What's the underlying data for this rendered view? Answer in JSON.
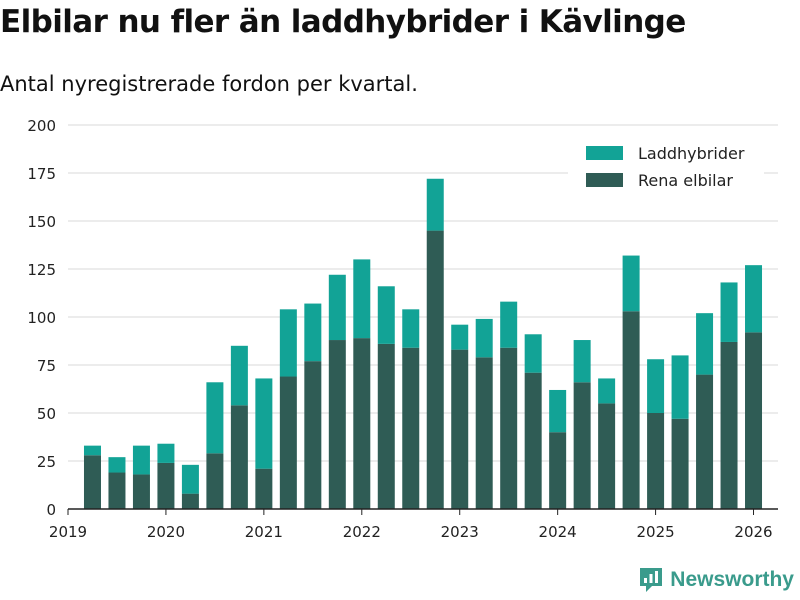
{
  "title": "Elbilar nu fler än laddhybrider i Kävlinge",
  "subtitle": "Antal nyregistrerade fordon per kvartal.",
  "brand": "Newsworthy",
  "colors": {
    "laddhybrider": "#12a396",
    "elbilar": "#2f5c55",
    "grid": "#d9d9d9",
    "axis": "#222222",
    "legend_bg": "#ffffff"
  },
  "chart_data": {
    "type": "bar",
    "stacked": true,
    "title": "Elbilar nu fler än laddhybrider i Kävlinge",
    "subtitle": "Antal nyregistrerade fordon per kvartal.",
    "xlabel": "",
    "ylabel": "",
    "ylim": [
      0,
      200
    ],
    "yticks": [
      0,
      25,
      50,
      75,
      100,
      125,
      150,
      175,
      200
    ],
    "xlim": [
      2019,
      2026.25
    ],
    "xticks": [
      2019,
      2020,
      2021,
      2022,
      2023,
      2024,
      2025,
      2026
    ],
    "xtick_labels": [
      "2019",
      "2020",
      "2021",
      "2022",
      "2023",
      "2024",
      "2025",
      "2026"
    ],
    "categories": [
      "2019 K2",
      "2019 K3",
      "2019 K4",
      "2020 K1",
      "2020 K2",
      "2020 K3",
      "2020 K4",
      "2021 K1",
      "2021 K2",
      "2021 K3",
      "2021 K4",
      "2022 K1",
      "2022 K2",
      "2022 K3",
      "2022 K4",
      "2023 K1",
      "2023 K2",
      "2023 K3",
      "2023 K4",
      "2024 K1",
      "2024 K2",
      "2024 K3",
      "2024 K4",
      "2025 K1",
      "2025 K2",
      "2025 K3",
      "2025 K4",
      "2026 K1"
    ],
    "x": [
      2019.25,
      2019.5,
      2019.75,
      2020.0,
      2020.25,
      2020.5,
      2020.75,
      2021.0,
      2021.25,
      2021.5,
      2021.75,
      2022.0,
      2022.25,
      2022.5,
      2022.75,
      2023.0,
      2023.25,
      2023.5,
      2023.75,
      2024.0,
      2024.25,
      2024.5,
      2024.75,
      2025.0,
      2025.25,
      2025.5,
      2025.75,
      2026.0
    ],
    "series": [
      {
        "name": "Rena elbilar",
        "key": "elbilar",
        "values": [
          28,
          19,
          18,
          24,
          8,
          29,
          54,
          21,
          69,
          77,
          88,
          89,
          86,
          84,
          145,
          83,
          79,
          84,
          71,
          40,
          66,
          55,
          103,
          50,
          47,
          70,
          87,
          92
        ]
      },
      {
        "name": "Laddhybrider",
        "key": "laddhybrider",
        "values": [
          5,
          8,
          15,
          10,
          15,
          37,
          31,
          47,
          35,
          30,
          34,
          41,
          30,
          20,
          27,
          13,
          20,
          24,
          20,
          22,
          22,
          13,
          29,
          28,
          33,
          32,
          31,
          35
        ]
      }
    ],
    "legend": {
      "position": "top-right",
      "entries": [
        {
          "label": "Laddhybrider",
          "key": "laddhybrider"
        },
        {
          "label": "Rena elbilar",
          "key": "elbilar"
        }
      ]
    },
    "grid": true
  }
}
